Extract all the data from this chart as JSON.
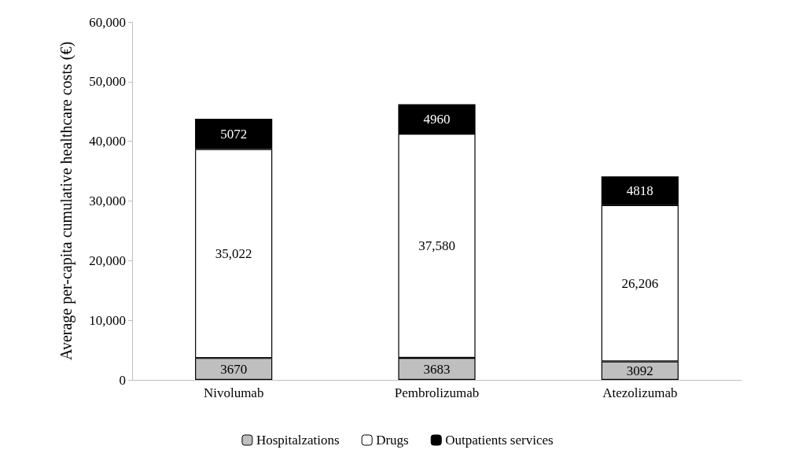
{
  "chart_data": {
    "type": "bar",
    "stacked": true,
    "ylabel": "Average per-capita cumulative healthcare costs (€)",
    "categories": [
      "Nivolumab",
      "Pembrolizumab",
      "Atezolizumab"
    ],
    "series": [
      {
        "name": "Hospitalzations",
        "color": "#bfbfbf",
        "values": [
          3670,
          3683,
          3092
        ],
        "value_labels": [
          "3670",
          "3683",
          "3092"
        ]
      },
      {
        "name": "Drugs",
        "color": "#ffffff",
        "values": [
          35022,
          37580,
          26206
        ],
        "value_labels": [
          "35,022",
          "37,580",
          "26,206"
        ]
      },
      {
        "name": "Outpatients services",
        "color": "#000000",
        "values": [
          5072,
          4960,
          4818
        ],
        "value_labels": [
          "5072",
          "4960",
          "4818"
        ]
      }
    ],
    "ylim": [
      0,
      60000
    ],
    "yticks": [
      {
        "value": 0,
        "label": "0"
      },
      {
        "value": 10000,
        "label": "10,000"
      },
      {
        "value": 20000,
        "label": "20,000"
      },
      {
        "value": 30000,
        "label": "30,000"
      },
      {
        "value": 40000,
        "label": "40,000"
      },
      {
        "value": 50000,
        "label": "50,000"
      },
      {
        "value": 60000,
        "label": "60,000"
      }
    ],
    "grid": false,
    "legend": "bottom"
  }
}
